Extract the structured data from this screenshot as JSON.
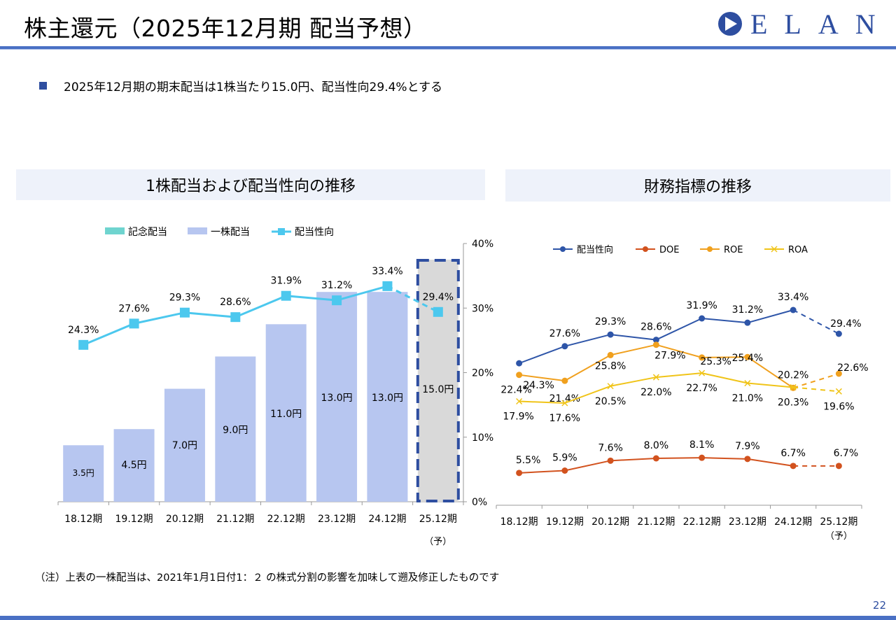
{
  "header": {
    "title": "株主還元（2025年12月期 配当予想）",
    "logo_text": "ELAN"
  },
  "bullet": "2025年12月期の期末配当は1株当たり15.0円、配当性向29.4%とする",
  "left_panel": {
    "title": "1株配当および配当性向の推移"
  },
  "right_panel": {
    "title": "財務指標の推移"
  },
  "note": "（注）上表の一株配当は、2021年1月1日付1：２ の株式分割の影響を加味して遡及修正したものです",
  "page_number": "22",
  "chart_data": [
    {
      "type": "bar",
      "categories": [
        "18.12期",
        "19.12期",
        "20.12期",
        "21.12期",
        "22.12期",
        "23.12期",
        "24.12期",
        "25.12期"
      ],
      "category_sub": [
        "",
        "",
        "",
        "",
        "",
        "",
        "",
        "（予）"
      ],
      "forecast_index": 7,
      "series": [
        {
          "name": "記念配当",
          "kind": "bar",
          "values": [
            0,
            0,
            0,
            0,
            0,
            0,
            0,
            0
          ],
          "color": "#6fd4cf"
        },
        {
          "name": "一株配当",
          "kind": "bar",
          "values": [
            3.5,
            4.5,
            7.0,
            9.0,
            11.0,
            13.0,
            13.0,
            15.0
          ],
          "labels": [
            "3.5円",
            "4.5円",
            "7.0円",
            "9.0円",
            "11.0円",
            "13.0円",
            "13.0円",
            "15.0円"
          ],
          "color": "#b7c6f0",
          "forecast_color": "#d9d9d9"
        },
        {
          "name": "配当性向",
          "kind": "line",
          "axis": "right",
          "values": [
            24.3,
            27.6,
            29.3,
            28.6,
            31.9,
            31.2,
            33.4,
            29.4
          ],
          "labels": [
            "24.3%",
            "27.6%",
            "29.3%",
            "28.6%",
            "31.9%",
            "31.2%",
            "33.4%",
            "29.4%"
          ],
          "color": "#4cc8ee"
        }
      ],
      "y_right": {
        "min": 0,
        "max": 40,
        "ticks": [
          "0%",
          "10%",
          "20%",
          "30%",
          "40%"
        ]
      },
      "legend": "top"
    },
    {
      "type": "line",
      "categories": [
        "18.12期",
        "19.12期",
        "20.12期",
        "21.12期",
        "22.12期",
        "23.12期",
        "24.12期",
        "25.12期"
      ],
      "category_sub": [
        "",
        "",
        "",
        "",
        "",
        "",
        "",
        "（予）"
      ],
      "forecast_index": 7,
      "series": [
        {
          "name": "配当性向",
          "values": [
            24.3,
            27.6,
            29.3,
            28.6,
            31.9,
            31.2,
            33.4,
            29.4
          ],
          "labels": [
            "",
            "27.6%",
            "29.3%",
            "28.6%",
            "31.9%",
            "31.2%",
            "33.4%",
            "29.4%"
          ],
          "color": "#2e55a8",
          "marker": "circle"
        },
        {
          "name": "DOE",
          "values": [
            5.5,
            5.9,
            7.6,
            8.0,
            8.1,
            7.9,
            6.7,
            6.7
          ],
          "labels": [
            "5.5%",
            "5.9%",
            "7.6%",
            "8.0%",
            "8.1%",
            "7.9%",
            "6.7%",
            "6.7%"
          ],
          "color": "#d2521e",
          "marker": "circle"
        },
        {
          "name": "ROE",
          "values": [
            22.4,
            21.4,
            25.8,
            27.9,
            25.3,
            25.4,
            20.2,
            22.6
          ],
          "labels": [
            "22.4%",
            "21.4%",
            "25.8%",
            "27.9%",
            "25.3%",
            "25.4%",
            "20.2%",
            "22.6%"
          ],
          "color": "#f0a01e",
          "marker": "circle"
        },
        {
          "name": "ROA",
          "values": [
            17.9,
            17.6,
            20.5,
            22.0,
            22.7,
            21.0,
            20.3,
            19.6
          ],
          "labels": [
            "17.9%",
            "17.6%",
            "20.5%",
            "22.0%",
            "22.7%",
            "21.0%",
            "20.3%",
            "19.6%"
          ],
          "color": "#f0c419",
          "marker": "x"
        }
      ],
      "extra_labels": [
        "24.3%"
      ],
      "legend": "top"
    }
  ]
}
